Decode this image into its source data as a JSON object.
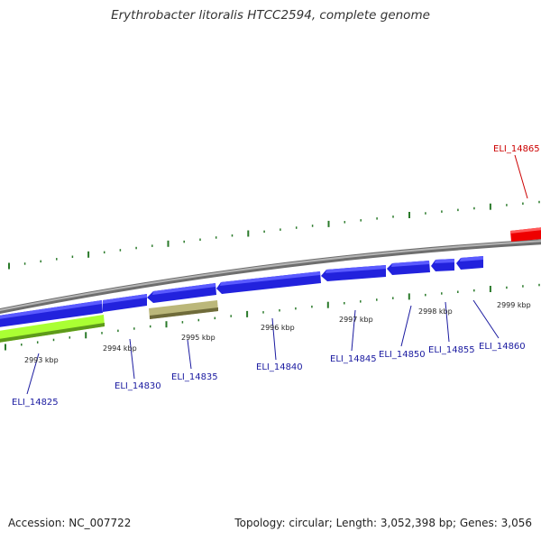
{
  "title": "Erythrobacter litoralis HTCC2594, complete genome",
  "footer": {
    "accession_label": "Accession:",
    "accession": "NC_007722",
    "topology_text": "Topology: circular; Length: 3,052,398 bp; Genes: 3,056"
  },
  "colors": {
    "forward_gene": "#2222dd",
    "reverse_gene_red": "#ee0000",
    "green_gene": "#aaff33",
    "tan_gene": "#bbb77a",
    "backbone": "#8f8f8f",
    "tick_green": "#2a7a2a",
    "label_blue": "#1a1aa0",
    "label_red": "#cc0000"
  },
  "ticks": [
    {
      "label": "2993 kbp"
    },
    {
      "label": "2994 kbp"
    },
    {
      "label": "2995 kbp"
    },
    {
      "label": "2996 kbp"
    },
    {
      "label": "2997 kbp"
    },
    {
      "label": "2998 kbp"
    },
    {
      "label": "2999 kbp"
    }
  ],
  "genes": [
    {
      "id": "ELI_14825"
    },
    {
      "id": "ELI_14830"
    },
    {
      "id": "ELI_14835"
    },
    {
      "id": "ELI_14840"
    },
    {
      "id": "ELI_14845"
    },
    {
      "id": "ELI_14850"
    },
    {
      "id": "ELI_14855"
    },
    {
      "id": "ELI_14860"
    },
    {
      "id": "ELI_14865"
    }
  ]
}
